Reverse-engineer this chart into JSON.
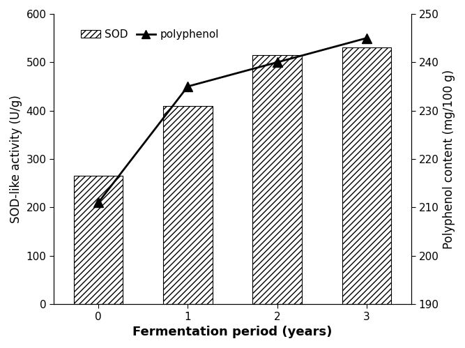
{
  "x": [
    0,
    1,
    2,
    3
  ],
  "sod_values": [
    265,
    410,
    515,
    530
  ],
  "polyphenol_values": [
    211,
    235,
    240,
    245
  ],
  "bar_edgecolor": "#000000",
  "line_color": "#000000",
  "hatch": "////",
  "xlabel": "Fermentation period (years)",
  "ylabel_left": "SOD-like activity (U/g)",
  "ylabel_right": "Polyphenol content (mg/100 g)",
  "ylim_left": [
    0,
    600
  ],
  "ylim_right": [
    190,
    250
  ],
  "yticks_left": [
    0,
    100,
    200,
    300,
    400,
    500,
    600
  ],
  "yticks_right": [
    190,
    200,
    210,
    220,
    230,
    240,
    250
  ],
  "xticks": [
    0,
    1,
    2,
    3
  ],
  "legend_sod": "SOD",
  "legend_poly": "polyphenol",
  "bar_width": 0.55,
  "marker": "^",
  "markersize": 10,
  "linewidth": 2.0,
  "tick_fontsize": 11,
  "label_fontsize": 12,
  "xlabel_fontsize": 13
}
